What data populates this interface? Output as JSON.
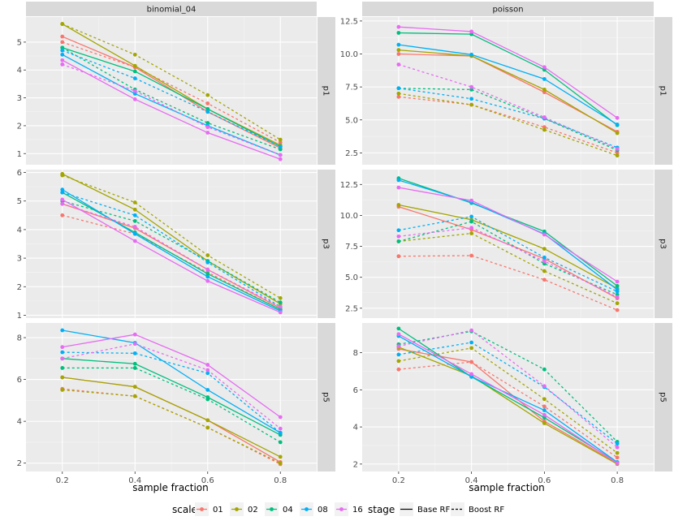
{
  "chart_data": {
    "type": "line",
    "title": "",
    "xlabel": "sample fraction",
    "x": [
      0.2,
      0.4,
      0.6,
      0.8
    ],
    "x_ticks": [
      "0.2",
      "0.4",
      "0.6",
      "0.8"
    ],
    "columns": [
      "binomial_04",
      "poisson"
    ],
    "rows": [
      "p1",
      "p3",
      "p5"
    ],
    "legend": {
      "scale": {
        "title": "scale",
        "levels": [
          "01",
          "02",
          "04",
          "08",
          "16"
        ],
        "colors": [
          "#F8766D",
          "#A3A500",
          "#00BF7D",
          "#00B0F6",
          "#E76BF3"
        ]
      },
      "stage": {
        "title": "stage",
        "levels": [
          "Base RF",
          "Boost RF"
        ]
      }
    },
    "panels": [
      {
        "id": "binomial_04-p1",
        "col": 0,
        "row": 0,
        "ylim": [
          0.6,
          5.9
        ],
        "y_ticks": [
          1,
          2,
          3,
          4,
          5
        ],
        "series": [
          {
            "scale": "01",
            "stage": "Base RF",
            "values": [
              5.2,
              4.1,
              2.5,
              1.2
            ]
          },
          {
            "scale": "01",
            "stage": "Boost RF",
            "values": [
              5.0,
              4.1,
              2.8,
              1.4
            ]
          },
          {
            "scale": "02",
            "stage": "Base RF",
            "values": [
              5.65,
              4.15,
              2.6,
              1.3
            ]
          },
          {
            "scale": "02",
            "stage": "Boost RF",
            "values": [
              5.65,
              4.55,
              3.1,
              1.5
            ]
          },
          {
            "scale": "04",
            "stage": "Base RF",
            "values": [
              4.8,
              3.95,
              2.6,
              1.25
            ]
          },
          {
            "scale": "04",
            "stage": "Boost RF",
            "values": [
              4.8,
              3.3,
              2.1,
              1.15
            ]
          },
          {
            "scale": "08",
            "stage": "Base RF",
            "values": [
              4.55,
              3.15,
              2.0,
              0.95
            ]
          },
          {
            "scale": "08",
            "stage": "Boost RF",
            "values": [
              4.7,
              3.7,
              2.5,
              1.25
            ]
          },
          {
            "scale": "16",
            "stage": "Base RF",
            "values": [
              4.35,
              2.95,
              1.75,
              0.8
            ]
          },
          {
            "scale": "16",
            "stage": "Boost RF",
            "values": [
              4.2,
              3.25,
              1.95,
              0.95
            ]
          }
        ]
      },
      {
        "id": "poisson-p1",
        "col": 1,
        "row": 0,
        "ylim": [
          1.6,
          12.8
        ],
        "y_ticks": [
          2.5,
          5.0,
          7.5,
          10.0,
          12.5
        ],
        "y_tick_labels": [
          "2.5",
          "5.0",
          "7.5",
          "10.0",
          "12.5"
        ],
        "series": [
          {
            "scale": "01",
            "stage": "Base RF",
            "values": [
              10.0,
              9.85,
              7.1,
              4.1
            ]
          },
          {
            "scale": "01",
            "stage": "Boost RF",
            "values": [
              6.75,
              6.15,
              4.45,
              2.5
            ]
          },
          {
            "scale": "02",
            "stage": "Base RF",
            "values": [
              10.3,
              9.85,
              7.3,
              4.0
            ]
          },
          {
            "scale": "02",
            "stage": "Boost RF",
            "values": [
              7.0,
              6.15,
              4.25,
              2.3
            ]
          },
          {
            "scale": "04",
            "stage": "Base RF",
            "values": [
              11.6,
              11.5,
              8.8,
              4.6
            ]
          },
          {
            "scale": "04",
            "stage": "Boost RF",
            "values": [
              7.4,
              7.3,
              5.1,
              2.7
            ]
          },
          {
            "scale": "08",
            "stage": "Base RF",
            "values": [
              10.7,
              9.95,
              8.1,
              4.65
            ]
          },
          {
            "scale": "08",
            "stage": "Boost RF",
            "values": [
              7.4,
              6.6,
              5.1,
              2.9
            ]
          },
          {
            "scale": "16",
            "stage": "Base RF",
            "values": [
              12.05,
              11.7,
              9.0,
              5.15
            ]
          },
          {
            "scale": "16",
            "stage": "Boost RF",
            "values": [
              9.2,
              7.5,
              5.2,
              2.8
            ]
          }
        ]
      },
      {
        "id": "binomial_04-p3",
        "col": 0,
        "row": 1,
        "ylim": [
          0.9,
          6.1
        ],
        "y_ticks": [
          1,
          2,
          3,
          4,
          5,
          6
        ],
        "series": [
          {
            "scale": "01",
            "stage": "Base RF",
            "values": [
              4.9,
              4.05,
              2.6,
              1.25
            ]
          },
          {
            "scale": "01",
            "stage": "Boost RF",
            "values": [
              4.5,
              3.85,
              2.5,
              1.2
            ]
          },
          {
            "scale": "02",
            "stage": "Base RF",
            "values": [
              5.95,
              4.7,
              2.9,
              1.4
            ]
          },
          {
            "scale": "02",
            "stage": "Boost RF",
            "values": [
              5.9,
              4.95,
              3.1,
              1.6
            ]
          },
          {
            "scale": "04",
            "stage": "Base RF",
            "values": [
              5.3,
              3.9,
              2.45,
              1.2
            ]
          },
          {
            "scale": "04",
            "stage": "Boost RF",
            "values": [
              5.0,
              4.3,
              2.9,
              1.45
            ]
          },
          {
            "scale": "08",
            "stage": "Base RF",
            "values": [
              5.4,
              3.85,
              2.35,
              1.15
            ]
          },
          {
            "scale": "08",
            "stage": "Boost RF",
            "values": [
              5.3,
              4.5,
              2.85,
              1.3
            ]
          },
          {
            "scale": "16",
            "stage": "Base RF",
            "values": [
              5.05,
              3.6,
              2.2,
              1.1
            ]
          },
          {
            "scale": "16",
            "stage": "Boost RF",
            "values": [
              4.9,
              4.1,
              2.6,
              1.3
            ]
          }
        ]
      },
      {
        "id": "poisson-p3",
        "col": 1,
        "row": 1,
        "ylim": [
          1.7,
          13.7
        ],
        "y_ticks": [
          2.5,
          5.0,
          7.5,
          10.0,
          12.5
        ],
        "y_tick_labels": [
          "2.5",
          "5.0",
          "7.5",
          "10.0",
          "12.5"
        ],
        "series": [
          {
            "scale": "01",
            "stage": "Base RF",
            "values": [
              10.7,
              8.85,
              6.5,
              3.3
            ]
          },
          {
            "scale": "01",
            "stage": "Boost RF",
            "values": [
              6.7,
              6.75,
              4.8,
              2.35
            ]
          },
          {
            "scale": "02",
            "stage": "Base RF",
            "values": [
              10.85,
              9.65,
              7.3,
              4.1
            ]
          },
          {
            "scale": "02",
            "stage": "Boost RF",
            "values": [
              7.9,
              8.55,
              5.5,
              2.9
            ]
          },
          {
            "scale": "04",
            "stage": "Base RF",
            "values": [
              13.0,
              11.0,
              8.7,
              4.3
            ]
          },
          {
            "scale": "04",
            "stage": "Boost RF",
            "values": [
              7.9,
              9.5,
              6.1,
              3.6
            ]
          },
          {
            "scale": "08",
            "stage": "Base RF",
            "values": [
              12.85,
              11.05,
              8.5,
              4.0
            ]
          },
          {
            "scale": "08",
            "stage": "Boost RF",
            "values": [
              8.8,
              9.9,
              6.6,
              3.85
            ]
          },
          {
            "scale": "16",
            "stage": "Base RF",
            "values": [
              12.25,
              11.2,
              8.45,
              4.65
            ]
          },
          {
            "scale": "16",
            "stage": "Boost RF",
            "values": [
              8.3,
              9.0,
              6.3,
              3.4
            ]
          }
        ]
      },
      {
        "id": "binomial_04-p5",
        "col": 0,
        "row": 2,
        "ylim": [
          1.6,
          8.7
        ],
        "y_ticks": [
          2,
          4,
          6,
          8
        ],
        "series": [
          {
            "scale": "01",
            "stage": "Base RF",
            "values": [
              6.1,
              5.65,
              4.05,
              2.05
            ]
          },
          {
            "scale": "01",
            "stage": "Boost RF",
            "values": [
              5.55,
              5.2,
              3.7,
              1.95
            ]
          },
          {
            "scale": "02",
            "stage": "Base RF",
            "values": [
              6.1,
              5.65,
              4.05,
              2.3
            ]
          },
          {
            "scale": "02",
            "stage": "Boost RF",
            "values": [
              5.5,
              5.2,
              3.7,
              2.0
            ]
          },
          {
            "scale": "04",
            "stage": "Base RF",
            "values": [
              7.0,
              6.75,
              5.15,
              3.35
            ]
          },
          {
            "scale": "04",
            "stage": "Boost RF",
            "values": [
              6.55,
              6.55,
              5.05,
              3.0
            ]
          },
          {
            "scale": "08",
            "stage": "Base RF",
            "values": [
              8.35,
              7.75,
              5.5,
              3.45
            ]
          },
          {
            "scale": "08",
            "stage": "Boost RF",
            "values": [
              7.3,
              7.25,
              6.3,
              3.45
            ]
          },
          {
            "scale": "16",
            "stage": "Base RF",
            "values": [
              7.55,
              8.15,
              6.7,
              4.2
            ]
          },
          {
            "scale": "16",
            "stage": "Boost RF",
            "values": [
              7.0,
              7.7,
              6.45,
              3.65
            ]
          }
        ]
      },
      {
        "id": "poisson-p5",
        "col": 1,
        "row": 2,
        "ylim": [
          1.6,
          9.6
        ],
        "y_ticks": [
          2,
          4,
          6,
          8
        ],
        "series": [
          {
            "scale": "01",
            "stage": "Base RF",
            "values": [
              8.2,
              7.5,
              4.3,
              2.05
            ]
          },
          {
            "scale": "01",
            "stage": "Boost RF",
            "values": [
              7.1,
              7.5,
              5.1,
              2.35
            ]
          },
          {
            "scale": "02",
            "stage": "Base RF",
            "values": [
              8.3,
              6.75,
              4.2,
              2.0
            ]
          },
          {
            "scale": "02",
            "stage": "Boost RF",
            "values": [
              7.55,
              8.25,
              5.5,
              2.6
            ]
          },
          {
            "scale": "04",
            "stage": "Base RF",
            "values": [
              9.3,
              6.7,
              4.5,
              2.1
            ]
          },
          {
            "scale": "04",
            "stage": "Boost RF",
            "values": [
              8.45,
              9.15,
              7.1,
              3.2
            ]
          },
          {
            "scale": "08",
            "stage": "Base RF",
            "values": [
              8.9,
              6.7,
              4.9,
              2.1
            ]
          },
          {
            "scale": "08",
            "stage": "Boost RF",
            "values": [
              7.9,
              8.55,
              6.15,
              3.1
            ]
          },
          {
            "scale": "16",
            "stage": "Base RF",
            "values": [
              9.0,
              6.85,
              4.65,
              2.05
            ]
          },
          {
            "scale": "16",
            "stage": "Boost RF",
            "values": [
              8.35,
              9.2,
              6.2,
              2.9
            ]
          }
        ]
      }
    ]
  }
}
